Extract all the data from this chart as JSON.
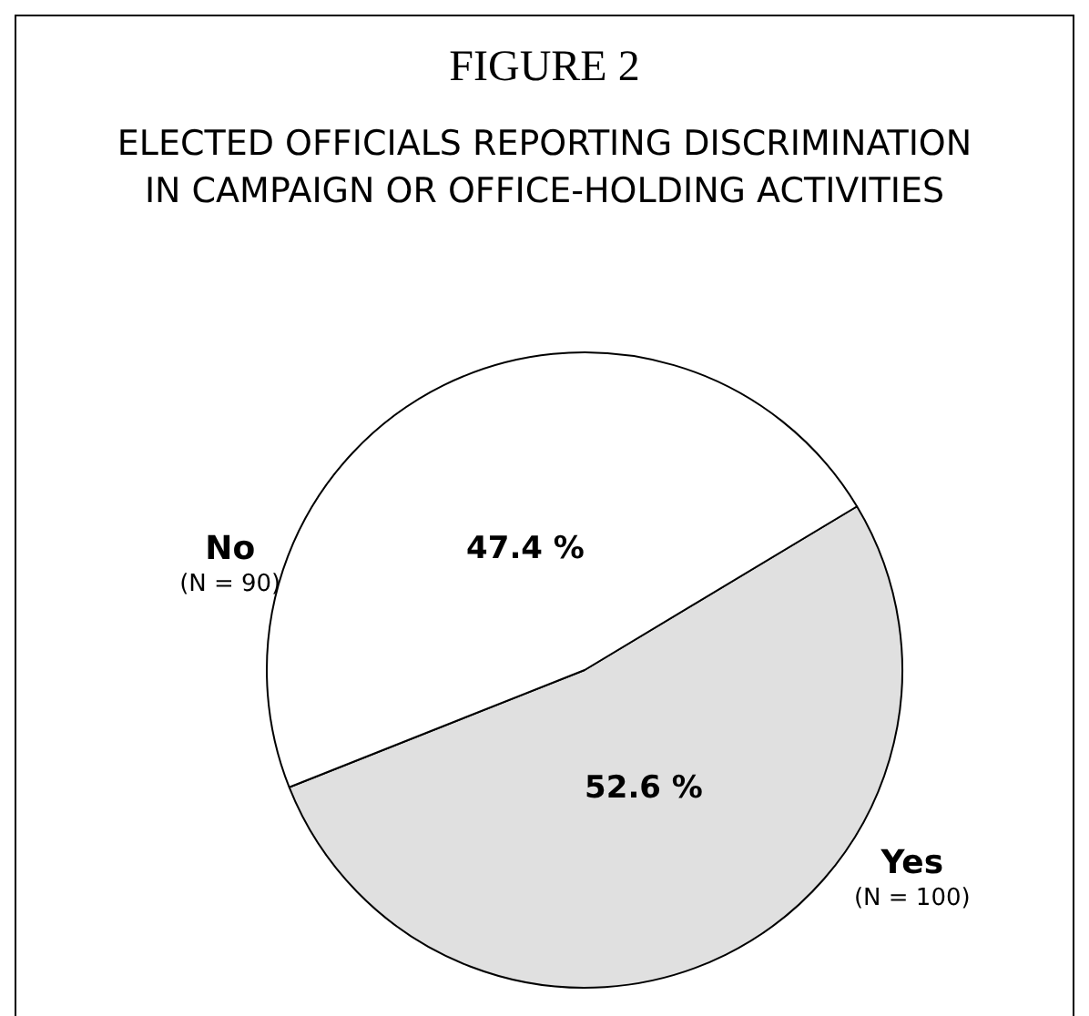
{
  "chart_data": {
    "type": "pie",
    "title": "FIGURE 2",
    "subtitle": "ELECTED OFFICIALS REPORTING DISCRIMINATION IN CAMPAIGN OR OFFICE-HOLDING ACTIVITIES",
    "categories": [
      "Yes",
      "No"
    ],
    "values": [
      52.6,
      47.4
    ],
    "colors": [
      "#e0e0e0",
      "#ffffff"
    ],
    "value_labels": [
      "52.6 %",
      "47.4 %"
    ],
    "annotations": [
      "(N = 100)",
      "(N = 90)"
    ],
    "legend": false
  }
}
